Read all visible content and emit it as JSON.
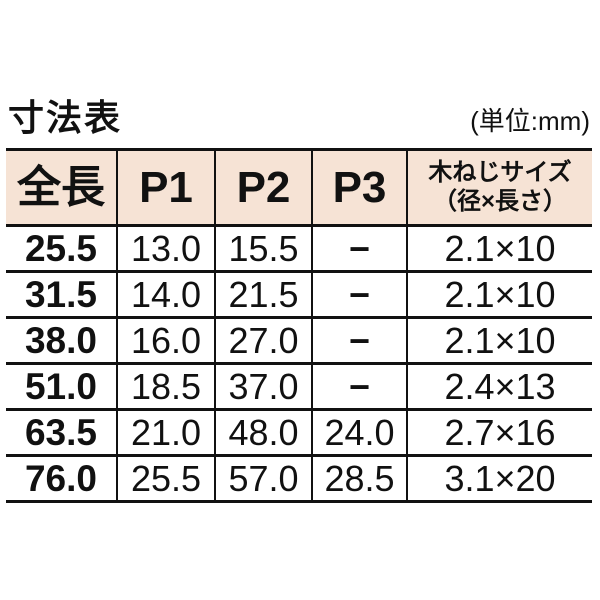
{
  "page": {
    "title": "寸法表",
    "unit_note": "(単位:mm)"
  },
  "colors": {
    "header_bg": "#f6e3d5",
    "rule_line": "#111111",
    "text": "#111111",
    "page_bg": "#ffffff"
  },
  "table": {
    "headers": [
      "全長",
      "P1",
      "P2",
      "P3"
    ],
    "screw_header": {
      "line1": "木ねじサイズ",
      "line2": "（径×長さ）"
    },
    "rows": [
      {
        "zencho": "25.5",
        "p1": "13.0",
        "p2": "15.5",
        "p3": "−",
        "screw": "2.1×10"
      },
      {
        "zencho": "31.5",
        "p1": "14.0",
        "p2": "21.5",
        "p3": "−",
        "screw": "2.1×10"
      },
      {
        "zencho": "38.0",
        "p1": "16.0",
        "p2": "27.0",
        "p3": "−",
        "screw": "2.1×10"
      },
      {
        "zencho": "51.0",
        "p1": "18.5",
        "p2": "37.0",
        "p3": "−",
        "screw": "2.4×13"
      },
      {
        "zencho": "63.5",
        "p1": "21.0",
        "p2": "48.0",
        "p3": "24.0",
        "screw": "2.7×16"
      },
      {
        "zencho": "76.0",
        "p1": "25.5",
        "p2": "57.0",
        "p3": "28.5",
        "screw": "3.1×20"
      }
    ]
  }
}
